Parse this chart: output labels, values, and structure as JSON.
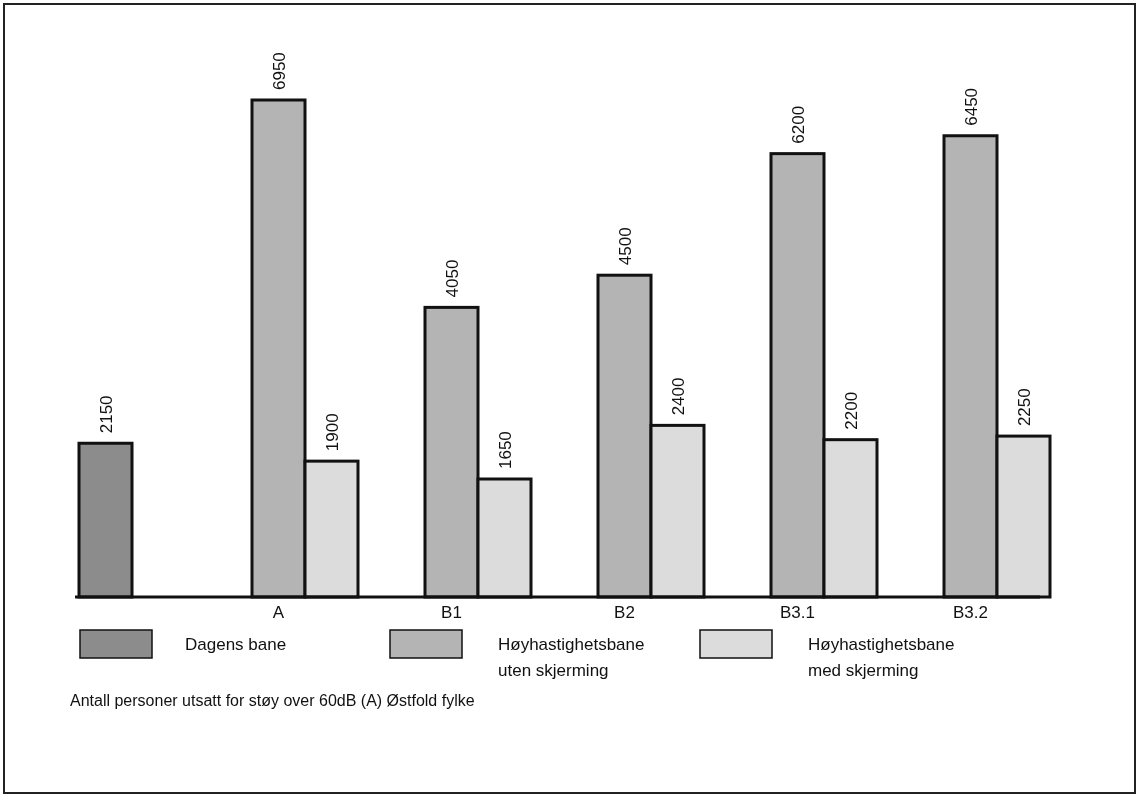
{
  "chart_data": {
    "type": "bar",
    "categories": [
      null,
      "A",
      "B1",
      "B2",
      "B3.1",
      "B3.2"
    ],
    "series": [
      {
        "name": "Dagens bane",
        "color": "#8c8c8c",
        "values": [
          2150,
          null,
          null,
          null,
          null,
          null
        ]
      },
      {
        "name": "Høyhastighetsbane uten skjerming",
        "color": "#b4b4b4",
        "values": [
          null,
          6950,
          4050,
          4500,
          6200,
          6450
        ]
      },
      {
        "name": "Høyhastighetsbane med skjerming",
        "color": "#dcdcdc",
        "values": [
          null,
          1900,
          1650,
          2400,
          2200,
          2250
        ]
      }
    ],
    "data_labels": true,
    "legend": "bottom",
    "annotations": [
      "Antall personer utsatt for støy over 60dB (A) Østfold fylke"
    ]
  }
}
